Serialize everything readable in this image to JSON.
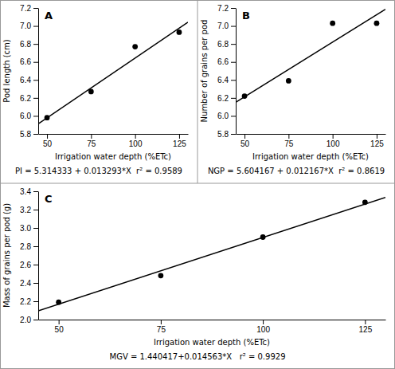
{
  "chart_data": [
    {
      "type": "scatter",
      "title": "A",
      "x_label": "Irrigation water depth (%ETc)",
      "y_label": "Pod length (cm)",
      "annotations": [
        "PI = 5.314333 + 0.013293*X  r² = 0.9589"
      ],
      "series": [
        {
          "type": "scatter",
          "x": [
            50,
            75,
            100,
            125
          ],
          "values": [
            5.98,
            6.27,
            6.77,
            6.93
          ],
          "color": "black",
          "marker": "circle"
        },
        {
          "type": "line",
          "x": [
            45,
            130
          ],
          "values": [
            5.912518,
            7.042423
          ],
          "color": "black",
          "line_style": "solid"
        }
      ],
      "xlim": [
        45,
        130
      ],
      "xticks": [
        50,
        75,
        100,
        125
      ],
      "ylim": [
        5.8,
        7.2
      ],
      "yticks": [
        5.8,
        {
          "value": 6.0,
          "label": "6.0"
        },
        6.2,
        6.4,
        6.6,
        6.8,
        {
          "value": 7.0,
          "label": "7.0"
        },
        7.2
      ],
      "grid": false
    },
    {
      "type": "scatter",
      "title": "B",
      "x_label": "Irrigation water depth (%ETc)",
      "y_label": "Number of grains per pod",
      "annotations": [
        "NGP = 5.604167 + 0.012167*X  r² = 0.8619"
      ],
      "series": [
        {
          "type": "scatter",
          "x": [
            50,
            75,
            100,
            125
          ],
          "values": [
            6.22,
            6.39,
            7.03,
            7.03
          ],
          "color": "black",
          "marker": "circle"
        },
        {
          "type": "line",
          "x": [
            45,
            130
          ],
          "values": [
            6.151682,
            7.185877
          ],
          "color": "black",
          "line_style": "solid"
        }
      ],
      "xlim": [
        45,
        130
      ],
      "xticks": [
        50,
        75,
        100,
        125
      ],
      "ylim": [
        5.8,
        7.2
      ],
      "yticks": [
        5.8,
        {
          "value": 6.0,
          "label": "6.0"
        },
        6.2,
        6.4,
        6.6,
        6.8,
        {
          "value": 7.0,
          "label": "7.0"
        },
        7.2
      ],
      "grid": false
    },
    {
      "type": "scatter",
      "title": "C",
      "x_label": "Irrigation water depth (%ETc)",
      "y_label": "Mass of grains per pod (g)",
      "annotations": [
        "MGV = 1.440417+0.014563*X   r² = 0.9929"
      ],
      "series": [
        {
          "type": "scatter",
          "x": [
            50,
            75,
            100,
            125
          ],
          "values": [
            2.19,
            2.48,
            2.9,
            3.28
          ],
          "color": "black",
          "marker": "circle"
        },
        {
          "type": "line",
          "x": [
            45,
            130
          ],
          "values": [
            2.095752,
            3.333607
          ],
          "color": "black",
          "line_style": "solid"
        }
      ],
      "xlim": [
        45,
        130
      ],
      "xticks": [
        50,
        75,
        100,
        125
      ],
      "ylim": [
        2.0,
        3.4
      ],
      "yticks": [
        {
          "value": 2.0,
          "label": "2.0"
        },
        2.2,
        2.4,
        2.6,
        2.8,
        {
          "value": 3.0,
          "label": "3.0"
        },
        3.2,
        3.4
      ],
      "grid": false
    }
  ]
}
